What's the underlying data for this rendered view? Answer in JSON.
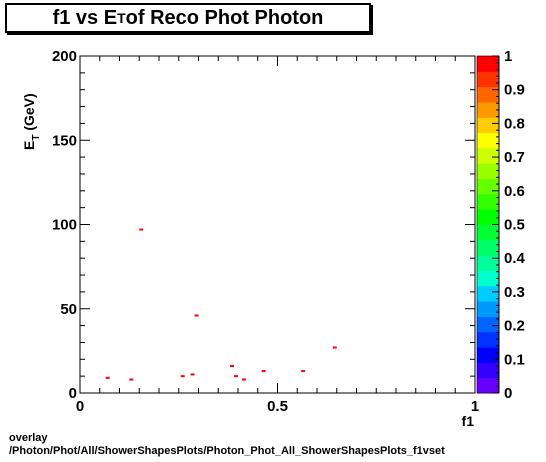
{
  "title": {
    "prefix": "f1 vs E",
    "sub": "T",
    "suffix": " of Reco Phot Photon"
  },
  "footer": {
    "line1": "overlay",
    "line2": "/Photon/Phot/All/ShowerShapesPlots/Photon_Phot_All_ShowerShapesPlots_f1vset"
  },
  "chart_data": {
    "type": "heatmap",
    "xlabel": "f1",
    "ylabel_main": "E",
    "ylabel_sub": "T",
    "ylabel_suffix": " (GeV)",
    "xlim": [
      0,
      1
    ],
    "ylim": [
      0,
      200
    ],
    "x_ticks": [
      0,
      0.5,
      1
    ],
    "x_tick_labels": [
      "0",
      "0.5",
      "1"
    ],
    "y_ticks": [
      0,
      50,
      100,
      150,
      200
    ],
    "y_tick_labels": [
      "0",
      "50",
      "100",
      "150",
      "200"
    ],
    "zlim": [
      0,
      1
    ],
    "z_ticks": [
      0,
      0.1,
      0.2,
      0.3,
      0.4,
      0.5,
      0.6,
      0.7,
      0.8,
      0.9,
      1
    ],
    "z_tick_labels": [
      "0",
      "0.1",
      "0.2",
      "0.3",
      "0.4",
      "0.5",
      "0.6",
      "0.7",
      "0.8",
      "0.9",
      "1"
    ],
    "palette": [
      "#6600ff",
      "#3300ff",
      "#0000ff",
      "#0033ff",
      "#0066ff",
      "#0099ff",
      "#00ccff",
      "#00ffcc",
      "#00ff99",
      "#00ff66",
      "#00ff33",
      "#00ff00",
      "#33ff00",
      "#66ff00",
      "#99ff00",
      "#ccff00",
      "#ffff00",
      "#ffcc00",
      "#ff9900",
      "#ff6600",
      "#ff3300",
      "#ff0000"
    ],
    "marker_color": "#ff0000",
    "grid": false,
    "points": [
      {
        "x": 0.155,
        "y": 97
      },
      {
        "x": 0.295,
        "y": 46
      },
      {
        "x": 0.645,
        "y": 27
      },
      {
        "x": 0.385,
        "y": 16
      },
      {
        "x": 0.465,
        "y": 13
      },
      {
        "x": 0.565,
        "y": 13
      },
      {
        "x": 0.26,
        "y": 10
      },
      {
        "x": 0.285,
        "y": 11
      },
      {
        "x": 0.395,
        "y": 10
      },
      {
        "x": 0.07,
        "y": 9
      },
      {
        "x": 0.13,
        "y": 8
      },
      {
        "x": 0.415,
        "y": 8
      }
    ]
  }
}
